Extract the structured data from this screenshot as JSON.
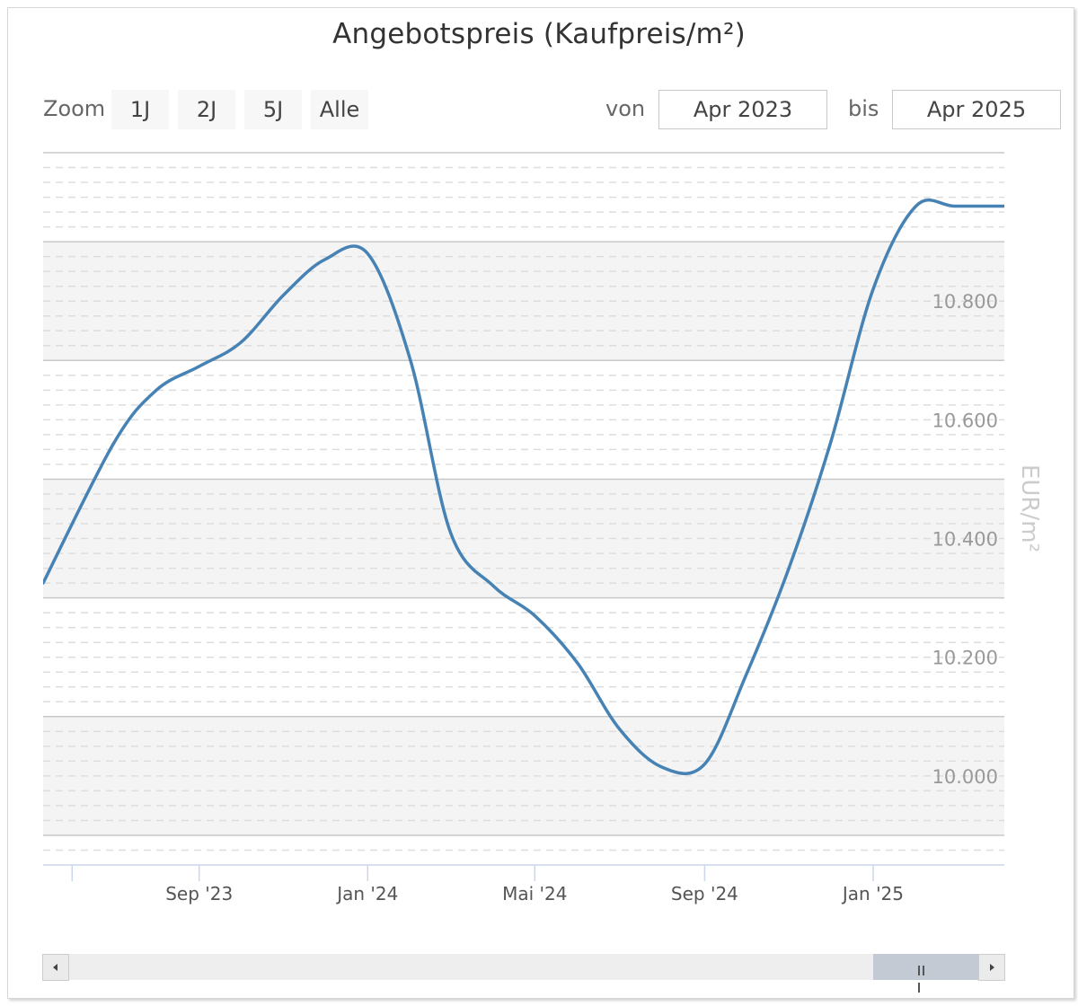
{
  "chart_data": {
    "type": "line",
    "title": "Angebotspreis (Kaufpreis/m²)",
    "ylabel": "EUR/m²",
    "ylim": [
      9850,
      11050
    ],
    "yticks": [
      10000,
      10200,
      10400,
      10600,
      10800
    ],
    "ytick_labels": [
      "10.000",
      "10.200",
      "10.400",
      "10.600",
      "10.800"
    ],
    "xlim": [
      "2023-05-11",
      "2025-04-06"
    ],
    "xticks": [
      {
        "date": "2023-06-01",
        "label": ""
      },
      {
        "date": "2023-09-01",
        "label": "Sep '23"
      },
      {
        "date": "2024-01-01",
        "label": "Jan '24"
      },
      {
        "date": "2024-05-01",
        "label": "Mai '24"
      },
      {
        "date": "2024-09-01",
        "label": "Sep '24"
      },
      {
        "date": "2025-01-01",
        "label": "Jan '25"
      }
    ],
    "series": [
      {
        "color": "#4682b4",
        "x": [
          "2023-05-11",
          "2023-07-01",
          "2023-08-01",
          "2023-09-01",
          "2023-10-01",
          "2023-11-01",
          "2023-12-01",
          "2024-01-01",
          "2024-02-01",
          "2024-03-01",
          "2024-04-01",
          "2024-05-01",
          "2024-06-01",
          "2024-07-01",
          "2024-08-01",
          "2024-09-01",
          "2024-10-01",
          "2024-11-01",
          "2024-12-01",
          "2025-01-01",
          "2025-02-01",
          "2025-03-01",
          "2025-04-06"
        ],
        "y": [
          10325,
          10560,
          10650,
          10690,
          10730,
          10810,
          10870,
          10880,
          10700,
          10410,
          10320,
          10270,
          10190,
          10080,
          10015,
          10020,
          10170,
          10350,
          10560,
          10820,
          10960,
          10960,
          10960
        ]
      }
    ]
  },
  "controls": {
    "zoom_label": "Zoom",
    "zoom_buttons": [
      "1J",
      "2J",
      "5J",
      "Alle"
    ],
    "from_label": "von",
    "from_value": "Apr 2023",
    "to_label": "bis",
    "to_value": "Apr 2025"
  },
  "colors": {
    "line": "#4682b4",
    "band": "#f4f4f4",
    "axis_text": "#999999",
    "x_axis_text": "#555555"
  }
}
